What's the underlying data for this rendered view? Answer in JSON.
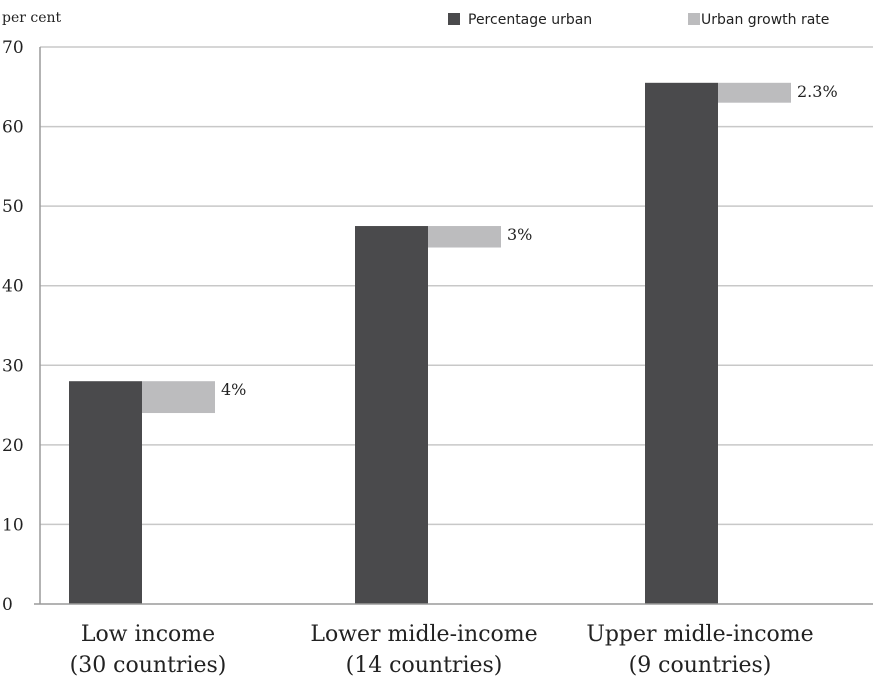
{
  "chart_data": {
    "type": "bar",
    "title": "",
    "ylabel": "per cent",
    "xlabel": "",
    "ylim": [
      0,
      70
    ],
    "yticks": [
      0,
      10,
      20,
      30,
      40,
      50,
      60,
      70
    ],
    "grid": true,
    "legend_position": "top-right",
    "categories": [
      {
        "line1": "Low income",
        "line2": "(30 countries)"
      },
      {
        "line1": "Lower midle-income",
        "line2": "(14 countries)"
      },
      {
        "line1": "Upper midle-income",
        "line2": "(9 countries)"
      }
    ],
    "series": [
      {
        "name": "Percentage urban",
        "color": "#4a4a4c",
        "values": [
          28,
          47.5,
          65.5
        ]
      },
      {
        "name": "Urban growth rate",
        "color": "#bcbcbe",
        "label_values": [
          "4%",
          "3%",
          "2.3%"
        ],
        "box_ranges": [
          [
            24,
            28
          ],
          [
            44.8,
            47.5
          ],
          [
            63,
            65.5
          ]
        ]
      }
    ]
  }
}
